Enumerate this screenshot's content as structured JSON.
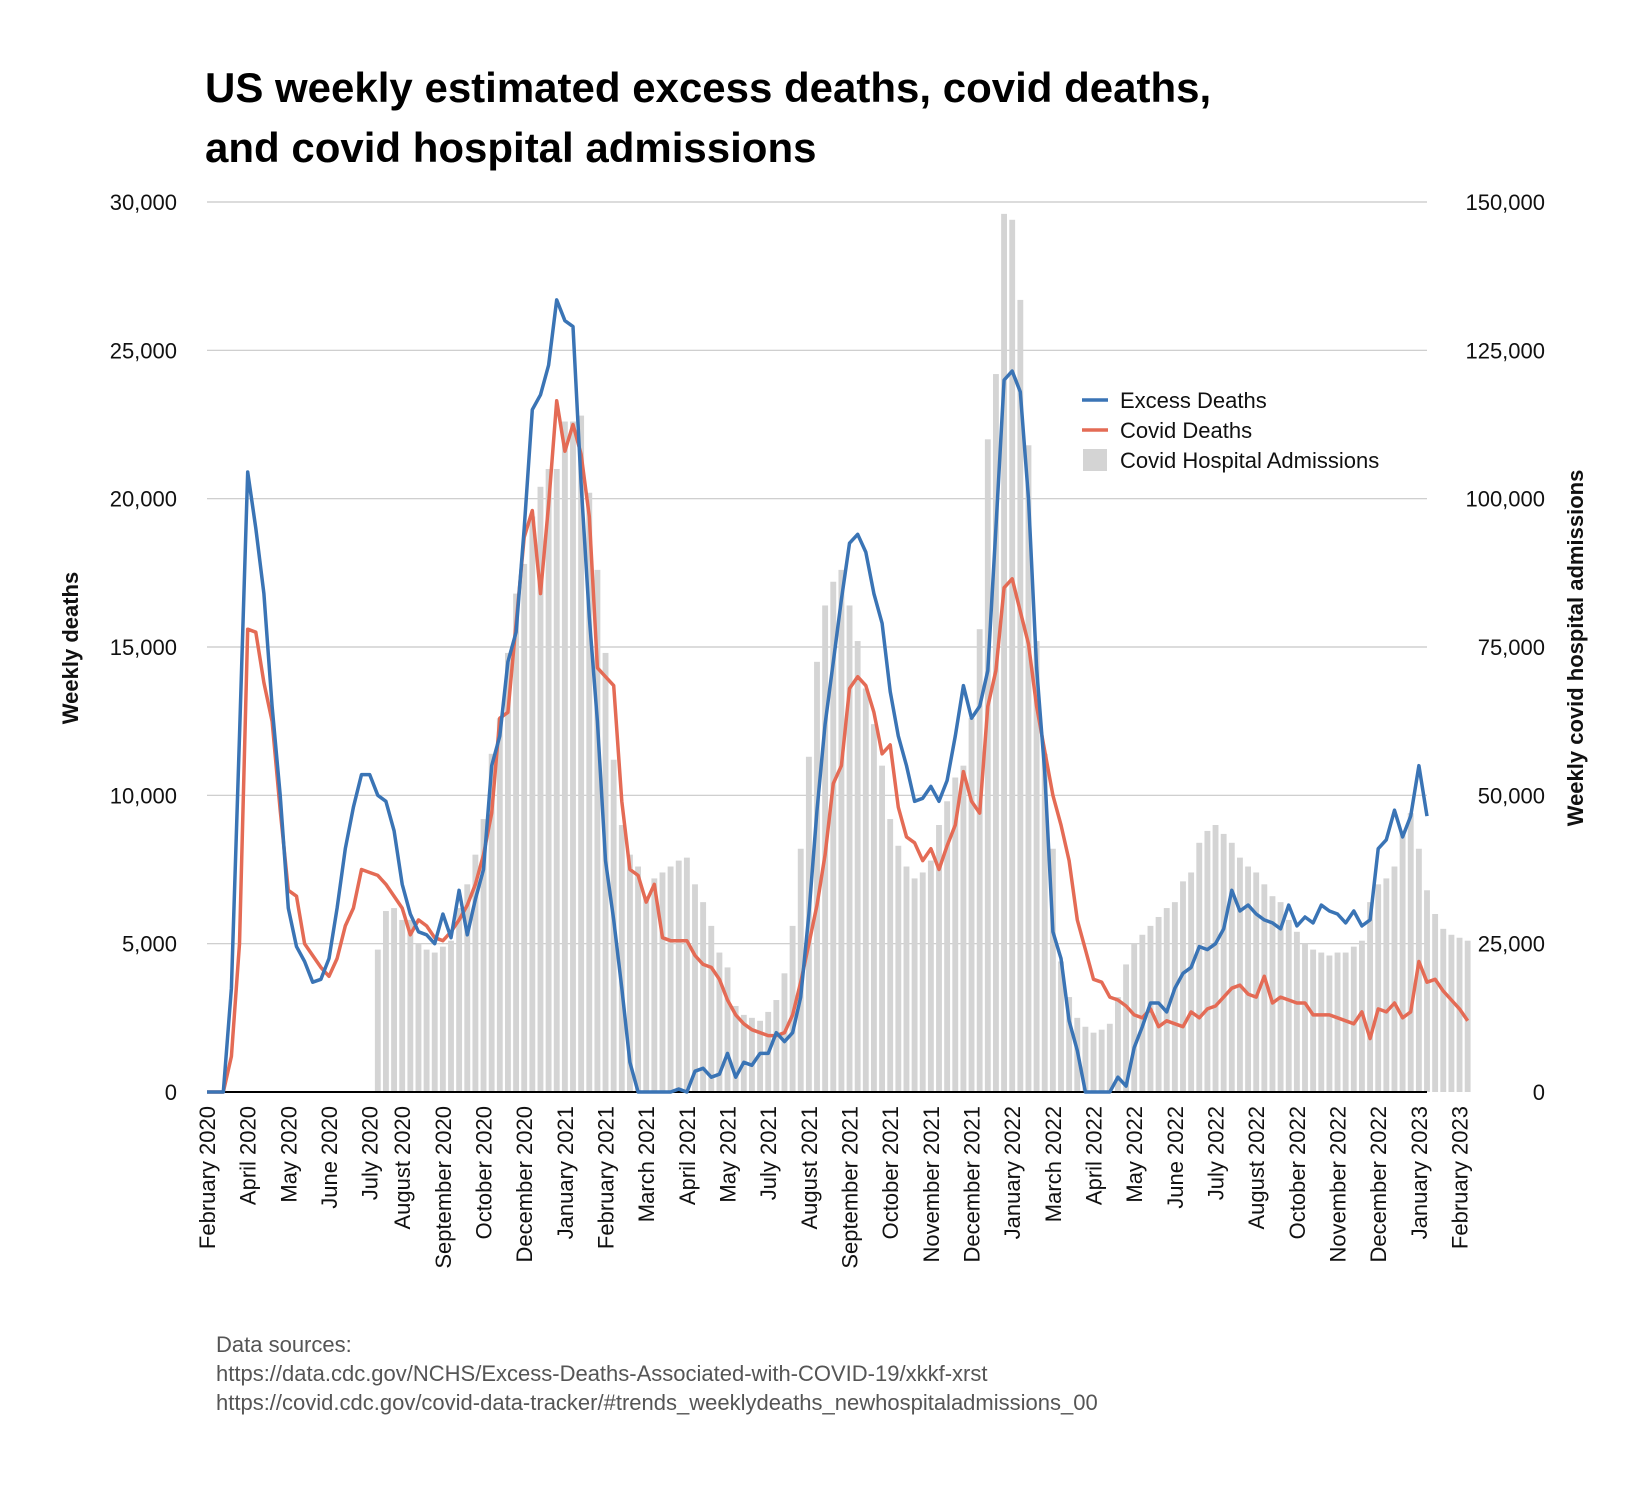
{
  "title": {
    "line1": "US weekly estimated excess deaths, covid deaths,",
    "line2": "and covid hospital admissions"
  },
  "sources": {
    "heading": "Data sources:",
    "lines": [
      "https://data.cdc.gov/NCHS/Excess-Deaths-Associated-with-COVID-19/xkkf-xrst",
      "https://covid.cdc.gov/covid-data-tracker/#trends_weeklydeaths_newhospitaladmissions_00"
    ]
  },
  "colors": {
    "excess": "#3a74b5",
    "covid": "#e46b55",
    "admissions": "#d4d4d4",
    "grid": "#c8c8c8",
    "baseline": "#000000"
  },
  "chart_data": {
    "type": "line",
    "ylabel": "Weekly deaths",
    "y2label": "Weekly covid hospital admissions",
    "ylim": [
      0,
      30000
    ],
    "y2lim": [
      0,
      150000
    ],
    "yticks": [
      "0",
      "5,000",
      "10,000",
      "15,000",
      "20,000",
      "25,000",
      "30,000"
    ],
    "y2ticks": [
      "0",
      "25,000",
      "50,000",
      "75,000",
      "100,000",
      "125,000",
      "150,000"
    ],
    "grid": true,
    "legend": "right",
    "x_tick_labels": [
      {
        "week": 0,
        "label": "February 2020"
      },
      {
        "week": 5,
        "label": "April 2020"
      },
      {
        "week": 10,
        "label": "May 2020"
      },
      {
        "week": 15,
        "label": "June 2020"
      },
      {
        "week": 20,
        "label": "July 2020"
      },
      {
        "week": 24,
        "label": "August 2020"
      },
      {
        "week": 29,
        "label": "September 2020"
      },
      {
        "week": 34,
        "label": "October 2020"
      },
      {
        "week": 39,
        "label": "December 2020"
      },
      {
        "week": 44,
        "label": "January 2021"
      },
      {
        "week": 49,
        "label": "February 2021"
      },
      {
        "week": 54,
        "label": "March 2021"
      },
      {
        "week": 59,
        "label": "April 2021"
      },
      {
        "week": 64,
        "label": "May 2021"
      },
      {
        "week": 69,
        "label": "July 2021"
      },
      {
        "week": 74,
        "label": "August 2021"
      },
      {
        "week": 79,
        "label": "September 2021"
      },
      {
        "week": 84,
        "label": "October 2021"
      },
      {
        "week": 89,
        "label": "November 2021"
      },
      {
        "week": 94,
        "label": "December 2021"
      },
      {
        "week": 99,
        "label": "January 2022"
      },
      {
        "week": 104,
        "label": "March 2022"
      },
      {
        "week": 109,
        "label": "April 2022"
      },
      {
        "week": 114,
        "label": "May 2022"
      },
      {
        "week": 119,
        "label": "June 2022"
      },
      {
        "week": 124,
        "label": "July 2022"
      },
      {
        "week": 129,
        "label": "August 2022"
      },
      {
        "week": 134,
        "label": "October 2022"
      },
      {
        "week": 139,
        "label": "November 2022"
      },
      {
        "week": 144,
        "label": "December 2022"
      },
      {
        "week": 149,
        "label": "January 2023"
      },
      {
        "week": 154,
        "label": "February 2023"
      }
    ],
    "series": [
      {
        "name": "Excess Deaths",
        "type": "line",
        "axis": "left",
        "values": [
          0,
          0,
          0,
          3500,
          12000,
          20900,
          19000,
          16800,
          13000,
          10000,
          6200,
          4900,
          4400,
          3700,
          3800,
          4500,
          6200,
          8200,
          9600,
          10700,
          10700,
          10000,
          9800,
          8800,
          7000,
          6000,
          5400,
          5300,
          5000,
          6000,
          5200,
          6800,
          5300,
          6500,
          7500,
          11000,
          12000,
          14500,
          15500,
          19000,
          23000,
          23500,
          24500,
          26700,
          26000,
          25800,
          20500,
          16000,
          12500,
          7800,
          5800,
          3500,
          1000,
          0,
          0,
          0,
          0,
          0,
          100,
          0,
          700,
          800,
          500,
          600,
          1300,
          500,
          1000,
          900,
          1300,
          1300,
          2000,
          1700,
          2000,
          3200,
          6000,
          9500,
          12400,
          14500,
          16600,
          18500,
          18800,
          18200,
          16800,
          15800,
          13500,
          12000,
          11000,
          9800,
          9900,
          10300,
          9800,
          10500,
          12000,
          13700,
          12600,
          13000,
          14200,
          19000,
          24000,
          24300,
          23600,
          20000,
          14300,
          10800,
          5400,
          4500,
          2400,
          1400,
          0,
          0,
          0,
          0,
          500,
          200,
          1500,
          2200,
          3000,
          3000,
          2700,
          3500,
          4000,
          4200,
          4900,
          4800,
          5000,
          5500,
          6800,
          6100,
          6300,
          6000,
          5800,
          5700,
          5500,
          6300,
          5600,
          5900,
          5700,
          6300,
          6100,
          6000,
          5700,
          6100,
          5600,
          5800,
          8200,
          8500,
          9500,
          8600,
          9300,
          11000,
          9300
        ]
      },
      {
        "name": "Covid Deaths",
        "type": "line",
        "axis": "left",
        "values": [
          0,
          0,
          0,
          1200,
          5000,
          15600,
          15500,
          13800,
          12500,
          9500,
          6800,
          6600,
          5000,
          4600,
          4200,
          3900,
          4500,
          5600,
          6200,
          7500,
          7400,
          7300,
          7000,
          6600,
          6200,
          5300,
          5800,
          5600,
          5200,
          5100,
          5400,
          5800,
          6300,
          7000,
          8000,
          9400,
          12600,
          12800,
          15800,
          18700,
          19600,
          16800,
          19800,
          23300,
          21600,
          22500,
          21500,
          19400,
          14300,
          14000,
          13700,
          9800,
          7500,
          7300,
          6400,
          7000,
          5200,
          5100,
          5100,
          5100,
          4600,
          4300,
          4200,
          3800,
          3100,
          2600,
          2300,
          2100,
          2000,
          1900,
          1900,
          2000,
          2600,
          3700,
          5000,
          6300,
          8000,
          10400,
          11000,
          13600,
          14000,
          13700,
          12800,
          11400,
          11700,
          9600,
          8600,
          8400,
          7800,
          8200,
          7500,
          8300,
          9000,
          10800,
          9800,
          9400,
          13000,
          14200,
          17000,
          17300,
          16200,
          15100,
          13000,
          11500,
          10000,
          9000,
          7800,
          5800,
          4800,
          3800,
          3700,
          3200,
          3100,
          2900,
          2600,
          2500,
          2800,
          2200,
          2400,
          2300,
          2200,
          2700,
          2500,
          2800,
          2900,
          3200,
          3500,
          3600,
          3300,
          3200,
          3900,
          3000,
          3200,
          3100,
          3000,
          3000,
          2600,
          2600,
          2600,
          2500,
          2400,
          2300,
          2700,
          1800,
          2800,
          2700,
          3000,
          2500,
          2700,
          4400,
          3700,
          3800,
          3400,
          3100,
          2800,
          2400
        ]
      },
      {
        "name": "Covid Hospital Admissions",
        "type": "bar",
        "axis": "right",
        "start_week": 21,
        "values": [
          24000,
          30500,
          31000,
          29000,
          29000,
          25000,
          24000,
          23500,
          24500,
          25500,
          31000,
          35000,
          40000,
          46000,
          57000,
          63000,
          74000,
          84000,
          89000,
          97000,
          102000,
          105000,
          105000,
          113000,
          113000,
          114000,
          101000,
          88000,
          74000,
          56000,
          45000,
          40000,
          38000,
          33000,
          36000,
          37000,
          38000,
          39000,
          39500,
          35000,
          32000,
          28000,
          23500,
          21000,
          14500,
          13000,
          12500,
          12000,
          13500,
          15500,
          20000,
          28000,
          41000,
          56500,
          72500,
          82000,
          86000,
          88000,
          82000,
          76000,
          68000,
          62000,
          55000,
          46000,
          41500,
          38000,
          36000,
          37000,
          39000,
          45000,
          49000,
          53000,
          55000,
          63000,
          78000,
          110000,
          121000,
          148000,
          147000,
          133500,
          109000,
          76000,
          57000,
          41000,
          22000,
          16000,
          12500,
          11000,
          10000,
          10500,
          11500,
          16000,
          21500,
          25000,
          26500,
          28000,
          29500,
          31000,
          32000,
          35500,
          37000,
          42000,
          44000,
          45000,
          43500,
          42000,
          39500,
          38000,
          37000,
          35000,
          33000,
          32000,
          29000,
          27000,
          25000,
          24000,
          23500,
          23000,
          23500,
          23500,
          24500,
          25500,
          32000,
          35000,
          36000,
          38000,
          44000,
          47000,
          41000,
          34000,
          30000,
          27500,
          26500,
          26000,
          25500
        ]
      }
    ]
  }
}
